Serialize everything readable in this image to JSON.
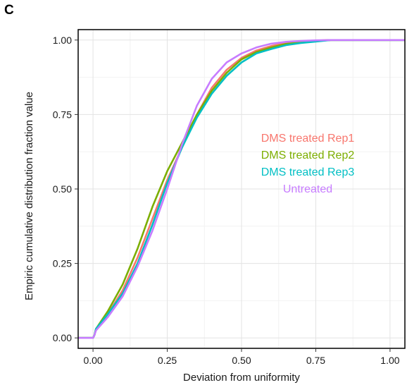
{
  "panel_label": "C",
  "chart_data": {
    "type": "line",
    "title": "",
    "xlabel": "Deviation from uniformity",
    "ylabel": "Empiric cumulative distribution fraction value",
    "xlim": [
      -0.05,
      1.05
    ],
    "ylim": [
      -0.035,
      1.035
    ],
    "x_ticks": [
      0.0,
      0.25,
      0.5,
      0.75,
      1.0
    ],
    "x_tick_labels": [
      "0.00",
      "0.25",
      "0.50",
      "0.75",
      "1.00"
    ],
    "y_ticks": [
      0.0,
      0.25,
      0.5,
      0.75,
      1.0
    ],
    "y_tick_labels": [
      "0.00",
      "0.25",
      "0.50",
      "0.75",
      "1.00"
    ],
    "grid": true,
    "legend_position": "center-right",
    "series": [
      {
        "name": "DMS treated Rep1",
        "color": "#f8766d",
        "x": [
          0,
          0.005,
          0.01,
          0.05,
          0.1,
          0.15,
          0.2,
          0.25,
          0.3,
          0.35,
          0.4,
          0.45,
          0.5,
          0.55,
          0.6,
          0.65,
          0.7,
          0.75,
          0.8,
          0.9,
          1.05
        ],
        "y": [
          0,
          0.01,
          0.03,
          0.08,
          0.16,
          0.27,
          0.4,
          0.53,
          0.64,
          0.75,
          0.84,
          0.9,
          0.94,
          0.965,
          0.98,
          0.99,
          0.995,
          0.998,
          1.0,
          1.0,
          1.0
        ]
      },
      {
        "name": "DMS treated Rep2",
        "color": "#7cae00",
        "x": [
          0,
          0.005,
          0.01,
          0.05,
          0.1,
          0.15,
          0.2,
          0.25,
          0.3,
          0.35,
          0.4,
          0.45,
          0.5,
          0.55,
          0.6,
          0.65,
          0.7,
          0.75,
          0.8,
          0.9,
          1.05
        ],
        "y": [
          0,
          0.01,
          0.03,
          0.09,
          0.18,
          0.3,
          0.44,
          0.56,
          0.655,
          0.75,
          0.83,
          0.89,
          0.935,
          0.96,
          0.975,
          0.987,
          0.993,
          0.997,
          1.0,
          1.0,
          1.0
        ]
      },
      {
        "name": "DMS treated Rep3",
        "color": "#00bfc4",
        "x": [
          0,
          0.005,
          0.01,
          0.05,
          0.1,
          0.15,
          0.2,
          0.25,
          0.3,
          0.35,
          0.4,
          0.45,
          0.5,
          0.55,
          0.6,
          0.65,
          0.7,
          0.75,
          0.8,
          0.9,
          1.05
        ],
        "y": [
          0,
          0.01,
          0.03,
          0.08,
          0.15,
          0.25,
          0.38,
          0.52,
          0.64,
          0.74,
          0.82,
          0.88,
          0.925,
          0.955,
          0.97,
          0.983,
          0.99,
          0.995,
          1.0,
          1.0,
          1.0
        ]
      },
      {
        "name": "Untreated",
        "color": "#c77cff",
        "x": [
          0,
          0.005,
          0.01,
          0.05,
          0.1,
          0.15,
          0.2,
          0.25,
          0.3,
          0.35,
          0.4,
          0.45,
          0.5,
          0.55,
          0.6,
          0.65,
          0.7,
          0.75,
          0.8,
          0.9,
          1.05
        ],
        "y": [
          0,
          0.01,
          0.025,
          0.07,
          0.14,
          0.24,
          0.36,
          0.5,
          0.65,
          0.78,
          0.87,
          0.925,
          0.955,
          0.975,
          0.988,
          0.994,
          0.997,
          0.999,
          1.0,
          1.0,
          1.0
        ]
      }
    ]
  }
}
